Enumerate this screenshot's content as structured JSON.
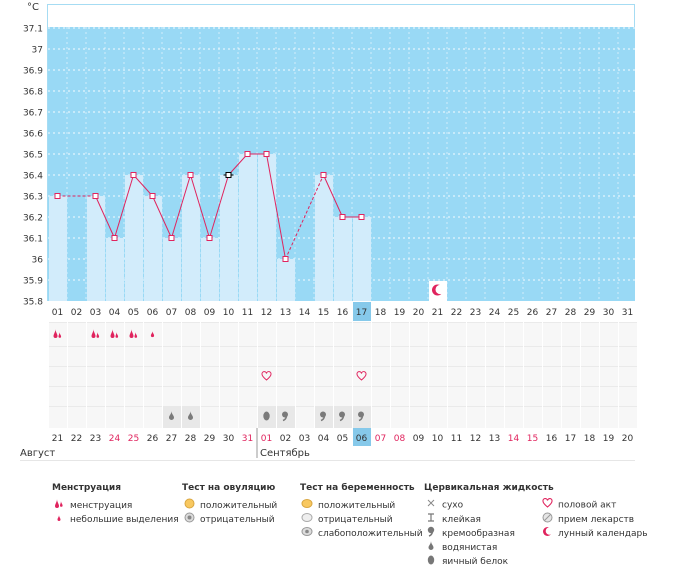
{
  "chart_data": {
    "type": "bar",
    "unit_label": "°C",
    "y_ticks": [
      "37.1",
      "37",
      "36.9",
      "36.8",
      "36.7",
      "36.6",
      "36.5",
      "36.4",
      "36.3",
      "36.2",
      "36.1",
      "36",
      "35.9",
      "35.8"
    ],
    "ylim": [
      35.8,
      37.2
    ],
    "days": [
      "01",
      "02",
      "03",
      "04",
      "05",
      "06",
      "07",
      "08",
      "09",
      "10",
      "11",
      "12",
      "13",
      "14",
      "15",
      "16",
      "17",
      "18",
      "19",
      "20",
      "21",
      "22",
      "23",
      "24",
      "25",
      "26",
      "27",
      "28",
      "29",
      "30",
      "31"
    ],
    "temperatures": [
      36.3,
      null,
      36.3,
      36.1,
      36.4,
      36.3,
      36.1,
      36.4,
      36.1,
      36.4,
      36.5,
      36.5,
      36.0,
      null,
      36.4,
      36.2,
      36.2,
      null,
      null,
      null,
      null,
      null,
      null,
      null,
      null,
      null,
      null,
      null,
      null,
      null,
      null
    ],
    "today_index": 16,
    "moon_index": 20,
    "menstruation": [
      {
        "index": 0,
        "type": "heavy"
      },
      {
        "index": 2,
        "type": "heavy"
      },
      {
        "index": 3,
        "type": "heavy"
      },
      {
        "index": 4,
        "type": "heavy"
      },
      {
        "index": 5,
        "type": "light"
      }
    ],
    "intercourse_indices": [
      11,
      16
    ],
    "fluid": [
      {
        "index": 6,
        "type": "watery"
      },
      {
        "index": 7,
        "type": "watery"
      },
      {
        "index": 11,
        "type": "eggwhite"
      },
      {
        "index": 12,
        "type": "creamy"
      },
      {
        "index": 14,
        "type": "creamy"
      },
      {
        "index": 15,
        "type": "creamy"
      },
      {
        "index": 16,
        "type": "creamy"
      }
    ],
    "cycle_days": [
      {
        "label": "21",
        "red": false
      },
      {
        "label": "22",
        "red": false
      },
      {
        "label": "23",
        "red": false
      },
      {
        "label": "24",
        "red": true
      },
      {
        "label": "25",
        "red": true
      },
      {
        "label": "26",
        "red": false
      },
      {
        "label": "27",
        "red": false
      },
      {
        "label": "28",
        "red": false
      },
      {
        "label": "29",
        "red": false
      },
      {
        "label": "30",
        "red": false
      },
      {
        "label": "31",
        "red": true
      },
      {
        "label": "01",
        "red": true
      },
      {
        "label": "02",
        "red": false
      },
      {
        "label": "03",
        "red": false
      },
      {
        "label": "04",
        "red": false
      },
      {
        "label": "05",
        "red": false
      },
      {
        "label": "06",
        "red": false
      },
      {
        "label": "07",
        "red": true
      },
      {
        "label": "08",
        "red": true
      },
      {
        "label": "09",
        "red": false
      },
      {
        "label": "10",
        "red": false
      },
      {
        "label": "11",
        "red": false
      },
      {
        "label": "12",
        "red": false
      },
      {
        "label": "13",
        "red": false
      },
      {
        "label": "14",
        "red": true
      },
      {
        "label": "15",
        "red": true
      },
      {
        "label": "16",
        "red": false
      },
      {
        "label": "17",
        "red": false
      },
      {
        "label": "18",
        "red": false
      },
      {
        "label": "19",
        "red": false
      },
      {
        "label": "20",
        "red": false
      }
    ],
    "month_left": "Август",
    "month_right": "Сентябрь",
    "month_split_index": 11
  },
  "legend": {
    "menstruation": {
      "title": "Менструация",
      "items": [
        "менструация",
        "небольшие выделения"
      ]
    },
    "ovulation": {
      "title": "Тест на овуляцию",
      "items": [
        "положительный",
        "отрицательный"
      ]
    },
    "pregnancy": {
      "title": "Тест на беременность",
      "items": [
        "положительный",
        "отрицательный",
        "слабоположительный"
      ]
    },
    "fluid": {
      "title": "Цервикальная жидкость",
      "items": [
        "сухо",
        "клейкая",
        "кремообразная",
        "водянистая",
        "яичный белок"
      ]
    },
    "other": {
      "items": [
        "половой акт",
        "прием лекарств",
        "лунный календарь"
      ]
    },
    "colors": {
      "accent": "#e0245e",
      "sky": "#99d9f5",
      "bar": "#d2ecfb",
      "today": "#86c9ea"
    }
  }
}
